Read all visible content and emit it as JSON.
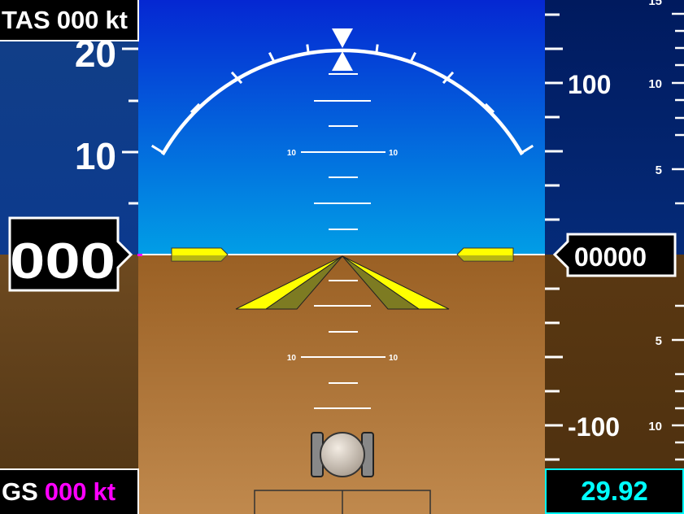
{
  "tas": {
    "label": "TAS",
    "value": "000",
    "unit": "kt"
  },
  "gs": {
    "label": "GS",
    "value": "000",
    "unit": "kt"
  },
  "airspeed": {
    "readout": "000",
    "scale_labels": [
      "20",
      "10"
    ]
  },
  "altitude": {
    "readout": "00000",
    "scale_labels": [
      "100",
      "-100"
    ]
  },
  "vsi": {
    "scale_labels": [
      "15",
      "10",
      "5",
      "5",
      "10"
    ]
  },
  "pitch_ladder": {
    "labels": [
      "10",
      "10",
      "10",
      "10"
    ]
  },
  "baro": {
    "setting": "29.92"
  },
  "colors": {
    "sky_top": "#0527d2",
    "sky_bottom": "#019ee6",
    "ground_top": "#9a6024",
    "ground_bottom": "#c0894d",
    "speed_tape": "#0a3a8a",
    "speed_tape_ground": "#5e3c18",
    "wings": "#ffff00",
    "gs_value": "#ff00ff",
    "baro": "#00ffff"
  },
  "icons": {
    "roll_pointer": "roll-pointer-icon",
    "aircraft_symbol": "aircraft-wings-icon",
    "slip_ball": "slip-ball-icon"
  }
}
